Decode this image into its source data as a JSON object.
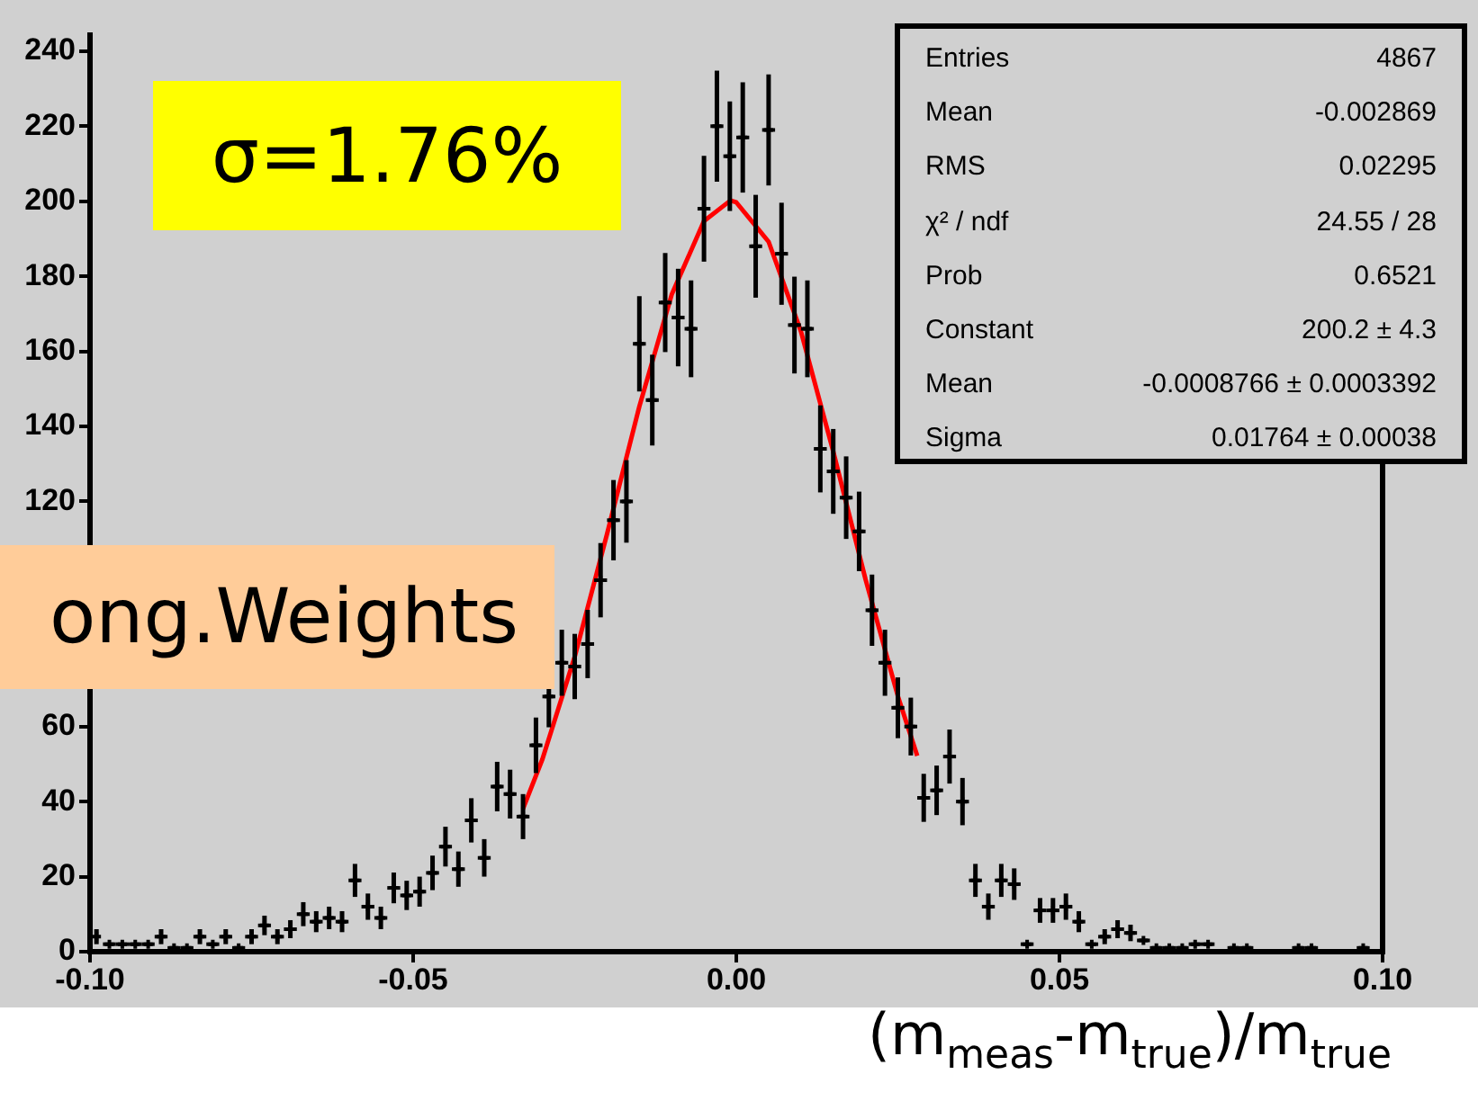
{
  "chart_data": {
    "type": "scatter",
    "xlabel": "(m$_{meas}$-m$_{true}$)/m$_{true}$",
    "annotations": [
      "σ=1.76%",
      "ong.Weights",
      "Entries",
      "4867",
      "Mean",
      "-0.002869",
      "RMS",
      "0.02295",
      "χ² / ndf",
      "24.55 / 28",
      "Prob",
      "0.6521",
      "Constant",
      "200.2 ± 4.3",
      "Mean",
      "-0.0008766 ± 0.0003392",
      "Sigma",
      "0.01764 ± 0.00038"
    ],
    "xlim": [
      -0.1,
      0.1
    ],
    "xticks": [
      {
        "value": -0.1,
        "label": "-0.10"
      },
      {
        "value": -0.05,
        "label": "-0.05"
      },
      {
        "value": 0,
        "label": "0.00"
      },
      {
        "value": 0.05,
        "label": "0.05"
      },
      {
        "value": 0.1,
        "label": "0.10"
      }
    ],
    "ylim": [
      0,
      245
    ],
    "yticks": [
      0,
      20,
      40,
      60,
      120,
      140,
      160,
      180,
      200,
      220,
      240
    ],
    "grid": false,
    "legend": false,
    "marker": "cross",
    "series": [
      {
        "type": "scatter",
        "color": "#000000",
        "x": [
          -0.099,
          -0.097,
          -0.095,
          -0.093,
          -0.091,
          -0.089,
          -0.087,
          -0.085,
          -0.083,
          -0.081,
          -0.079,
          -0.077,
          -0.075,
          -0.073,
          -0.071,
          -0.069,
          -0.067,
          -0.065,
          -0.063,
          -0.061,
          -0.059,
          -0.057,
          -0.055,
          -0.053,
          -0.051,
          -0.049,
          -0.047,
          -0.045,
          -0.043,
          -0.041,
          -0.039,
          -0.037,
          -0.035,
          -0.033,
          -0.031,
          -0.029,
          -0.027,
          -0.025,
          -0.023,
          -0.021,
          -0.019,
          -0.017,
          -0.015,
          -0.013,
          -0.011,
          -0.009,
          -0.007,
          -0.005,
          -0.003,
          -0.001,
          0.001,
          0.003,
          0.005,
          0.007,
          0.009,
          0.011,
          0.013,
          0.015,
          0.017,
          0.019,
          0.021,
          0.023,
          0.025,
          0.027,
          0.029,
          0.031,
          0.033,
          0.035,
          0.037,
          0.039,
          0.041,
          0.043,
          0.045,
          0.047,
          0.049,
          0.051,
          0.053,
          0.055,
          0.057,
          0.059,
          0.061,
          0.063,
          0.065,
          0.067,
          0.069,
          0.071,
          0.073,
          0.075,
          0.077,
          0.079,
          0.081,
          0.083,
          0.085,
          0.087,
          0.089,
          0.091,
          0.093,
          0.095,
          0.097
        ],
        "values": [
          4,
          2,
          2,
          2,
          2,
          4,
          1,
          1,
          4,
          2,
          4,
          1,
          4,
          7,
          4,
          6,
          10,
          8,
          9,
          8,
          19,
          12,
          9,
          17,
          15,
          16,
          21,
          28,
          22,
          35,
          25,
          44,
          42,
          36,
          55,
          68,
          77,
          76,
          82,
          99,
          115,
          120,
          162,
          147,
          173,
          169,
          166,
          198,
          220,
          212,
          217,
          188,
          219,
          186,
          167,
          166,
          134,
          128,
          121,
          112,
          91,
          77,
          65,
          60,
          41,
          43,
          52,
          40,
          19,
          12,
          19,
          18,
          2,
          11,
          11,
          12,
          8,
          2,
          4,
          6,
          5,
          3,
          1,
          1,
          1,
          2,
          2,
          null,
          1,
          1,
          null,
          null,
          null,
          1,
          1,
          null,
          null,
          null,
          1
        ],
        "errors": [
          2,
          null,
          null,
          null,
          null,
          2,
          null,
          null,
          2,
          null,
          2,
          null,
          2,
          2.6,
          2,
          2.4,
          3.2,
          2.8,
          3,
          2.8,
          4.4,
          3.5,
          3,
          4.1,
          3.9,
          4,
          4.6,
          5.3,
          4.7,
          5.9,
          5,
          6.6,
          6.5,
          6,
          7.4,
          8.2,
          8.8,
          8.7,
          9.1,
          9.9,
          10.7,
          11,
          12.7,
          12.1,
          13.2,
          13,
          12.9,
          14.1,
          14.8,
          14.6,
          14.7,
          13.7,
          14.8,
          13.6,
          12.9,
          12.9,
          11.6,
          11.3,
          11,
          10.6,
          9.5,
          8.8,
          8.1,
          7.7,
          6.4,
          6.6,
          7.2,
          6.3,
          4.4,
          3.5,
          4.4,
          4.2,
          null,
          3.3,
          3.3,
          3.5,
          2.8,
          null,
          2,
          2.4,
          2.2,
          null,
          null,
          null,
          null,
          null,
          null,
          null,
          null,
          null,
          null,
          null,
          null,
          null,
          null,
          null,
          null,
          null,
          null
        ],
        "xerrors": [
          null,
          0.001,
          0.001,
          0.001,
          0.001,
          0.001,
          0.001,
          0.001,
          0.001,
          0.001,
          0.001,
          0.001,
          0.001,
          0.001,
          0.001,
          0.001,
          0.001,
          0.001,
          0.001,
          0.001,
          0.001,
          0.001,
          0.001,
          0.001,
          0.001,
          0.001,
          0.001,
          0.001,
          0.001,
          0.001,
          0.001,
          0.001,
          0.001,
          0.001,
          0.001,
          0.001,
          0.001,
          0.001,
          0.001,
          0.001,
          0.001,
          0.001,
          0.001,
          0.001,
          0.001,
          0.001,
          0.001,
          0.001,
          0.001,
          0.001,
          0.001,
          0.001,
          0.001,
          0.001,
          0.001,
          0.001,
          0.001,
          0.001,
          0.001,
          0.001,
          0.001,
          0.001,
          0.001,
          0.001,
          0.001,
          0.001,
          0.001,
          0.001,
          0.001,
          0.001,
          0.001,
          0.001,
          0.001,
          0.001,
          0.001,
          0.001,
          0.001,
          0.001,
          0.001,
          0.001,
          0.001,
          0.001,
          0.001,
          0.001,
          0.001,
          0.001,
          0.001,
          null,
          0.001,
          0.001,
          null,
          null,
          null,
          0.001,
          0.001,
          null,
          null,
          null,
          0.001
        ]
      },
      {
        "type": "line",
        "color": "#ff0000",
        "marker": "none",
        "x": [
          -0.033,
          -0.03,
          -0.025,
          -0.02,
          -0.015,
          -0.01,
          -0.005,
          -0.0009,
          0,
          0.005,
          0.01,
          0.015,
          0.02,
          0.025,
          0.028
        ],
        "values": [
          38.1,
          51.3,
          78.6,
          111.3,
          145.3,
          175.1,
          194.7,
          200.2,
          199.7,
          189.2,
          165.3,
          133.3,
          99.2,
          68.1,
          52.2
        ]
      }
    ]
  }
}
